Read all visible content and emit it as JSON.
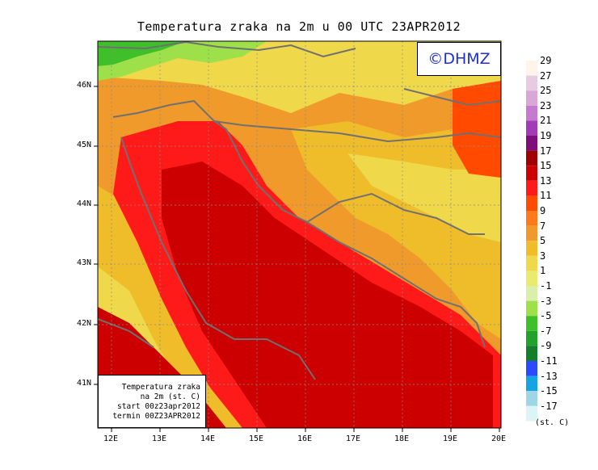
{
  "title": "Temperatura zraka na 2m u 00 UTC 23APR2012",
  "copyright": "©DHMZ",
  "info_box": [
    "Temperatura zraka",
    "na 2m (st. C)",
    "start 00z23apr2012",
    "termin 00Z23APR2012"
  ],
  "lat_labels": [
    "46N",
    "45N",
    "44N",
    "43N",
    "42N",
    "41N"
  ],
  "lon_labels": [
    "12E",
    "13E",
    "14E",
    "15E",
    "16E",
    "17E",
    "18E",
    "19E",
    "20E"
  ],
  "colorbar": {
    "labels": [
      "29",
      "27",
      "25",
      "23",
      "21",
      "19",
      "17",
      "15",
      "13",
      "11",
      "9",
      "7",
      "5",
      "3",
      "1",
      "-1",
      "-3",
      "-5",
      "-7",
      "-9",
      "-11",
      "-13",
      "-15",
      "-17"
    ],
    "colors": [
      "#fff4ea",
      "#e6cce0",
      "#d9a6d6",
      "#c57ad0",
      "#a33ab7",
      "#7f0e7a",
      "#a10000",
      "#cc0000",
      "#ff1a1a",
      "#ff4a00",
      "#ff7a1a",
      "#ef9a2a",
      "#efbc2a",
      "#efd84a",
      "#eaea6e",
      "#daf0a8",
      "#9ee04a",
      "#3fc02a",
      "#22a22a",
      "#157e2a",
      "#2a4aff",
      "#14a4e4",
      "#9ed6e6",
      "#dcf4f4"
    ],
    "unit": "(st. C)"
  }
}
